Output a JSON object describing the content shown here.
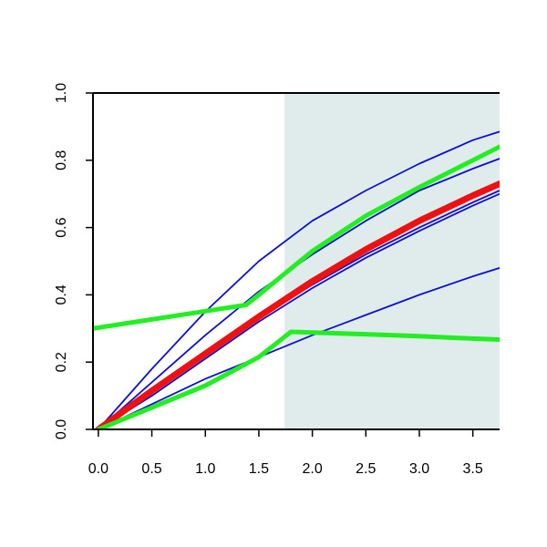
{
  "chart_data": {
    "type": "line",
    "title": "",
    "xlabel": "",
    "ylabel": "",
    "xlim": [
      -0.05,
      3.75
    ],
    "ylim": [
      0.0,
      1.0
    ],
    "x_ticks": [
      0.0,
      0.5,
      1.0,
      1.5,
      2.0,
      2.5,
      3.0,
      3.5
    ],
    "x_tick_labels": [
      "0.0",
      "0.5",
      "1.0",
      "1.5",
      "2.0",
      "2.5",
      "3.0",
      "3.5"
    ],
    "y_ticks": [
      0.0,
      0.2,
      0.4,
      0.6,
      0.8,
      1.0
    ],
    "y_tick_labels": [
      "0.0",
      "0.2",
      "0.4",
      "0.6",
      "0.8",
      "1.0"
    ],
    "grid": false,
    "shaded_region": {
      "x": [
        1.74,
        3.75
      ],
      "color": "#e0ecec"
    },
    "series": [
      {
        "color": "#1010cc",
        "role": "thin",
        "x": [
          0,
          0.5,
          1.0,
          1.5,
          2.0,
          2.5,
          3.0,
          3.5,
          3.75
        ],
        "y": [
          0.0,
          0.18,
          0.35,
          0.5,
          0.62,
          0.71,
          0.79,
          0.86,
          0.885
        ]
      },
      {
        "color": "#1010cc",
        "role": "thin",
        "x": [
          0,
          0.5,
          1.0,
          1.5,
          2.0,
          2.5,
          3.0,
          3.5,
          3.75
        ],
        "y": [
          0.0,
          0.14,
          0.28,
          0.41,
          0.52,
          0.62,
          0.71,
          0.775,
          0.805
        ]
      },
      {
        "color": "#1010cc",
        "role": "thin",
        "x": [
          0,
          0.5,
          1.0,
          1.5,
          2.0,
          2.5,
          3.0,
          3.5,
          3.75
        ],
        "y": [
          0.0,
          0.11,
          0.22,
          0.33,
          0.43,
          0.52,
          0.6,
          0.675,
          0.71
        ]
      },
      {
        "color": "#1010cc",
        "role": "thin",
        "x": [
          0,
          0.5,
          1.0,
          1.5,
          2.0,
          2.5,
          3.0,
          3.5,
          3.75
        ],
        "y": [
          0.0,
          0.1,
          0.21,
          0.32,
          0.42,
          0.51,
          0.59,
          0.665,
          0.7
        ]
      },
      {
        "color": "#1010cc",
        "role": "thin",
        "x": [
          0,
          0.5,
          1.0,
          1.5,
          2.0,
          2.5,
          3.0,
          3.5,
          3.75
        ],
        "y": [
          0.0,
          0.075,
          0.15,
          0.215,
          0.28,
          0.34,
          0.4,
          0.455,
          0.48
        ]
      },
      {
        "color": "#ee1111",
        "role": "thick",
        "x": [
          0,
          0.5,
          1.0,
          1.5,
          2.0,
          2.5,
          3.0,
          3.5,
          3.75
        ],
        "y": [
          0.0,
          0.115,
          0.225,
          0.335,
          0.44,
          0.535,
          0.62,
          0.695,
          0.73
        ]
      },
      {
        "color": "#22ee22",
        "role": "thick",
        "x": [
          -0.05,
          1.38,
          1.5,
          2.0,
          2.5,
          3.0,
          3.5,
          3.75
        ],
        "y": [
          0.3,
          0.37,
          0.4,
          0.53,
          0.635,
          0.72,
          0.8,
          0.84
        ]
      },
      {
        "color": "#22ee22",
        "role": "thick",
        "x": [
          0,
          0.5,
          1.0,
          1.5,
          1.8,
          2.5,
          3.0,
          3.5,
          3.75
        ],
        "y": [
          0.0,
          0.065,
          0.13,
          0.215,
          0.29,
          0.283,
          0.277,
          0.27,
          0.267
        ]
      }
    ]
  }
}
